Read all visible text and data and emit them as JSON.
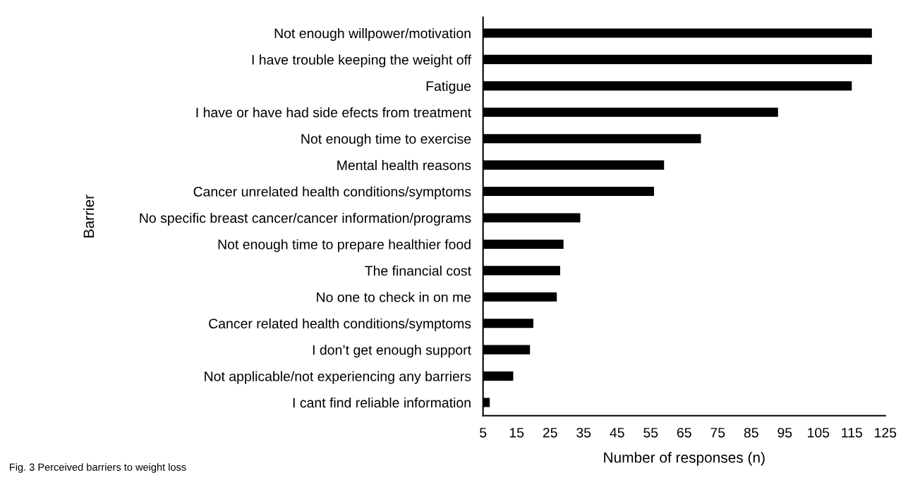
{
  "chart_data": {
    "type": "bar",
    "orientation": "horizontal",
    "categories": [
      "Not enough willpower/motivation",
      "I have trouble keeping the weight off",
      "Fatigue",
      "I have or have had side efects from treatment",
      "Not enough time to exercise",
      "Mental health reasons",
      "Cancer unrelated health conditions/symptoms",
      "No specific breast cancer/cancer information/programs",
      "Not enough time to prepare healthier food",
      "The financial cost",
      "No one to check in on me",
      "Cancer related health conditions/symptoms",
      "I don’t get enough support",
      "Not applicable/not experiencing any barriers",
      "I cant find reliable information"
    ],
    "values": [
      121,
      121,
      115,
      93,
      70,
      59,
      56,
      34,
      29,
      28,
      27,
      20,
      19,
      14,
      7
    ],
    "color": "#000000",
    "xlim": [
      5,
      125
    ],
    "xticks": [
      5,
      15,
      25,
      35,
      45,
      55,
      65,
      75,
      85,
      95,
      105,
      115,
      125
    ],
    "xlabel": "Number of responses (n)",
    "ylabel": "Barrier",
    "grid": false,
    "legend": false,
    "annotations": [
      "Fig. 3 Perceived barriers to weight loss"
    ]
  }
}
